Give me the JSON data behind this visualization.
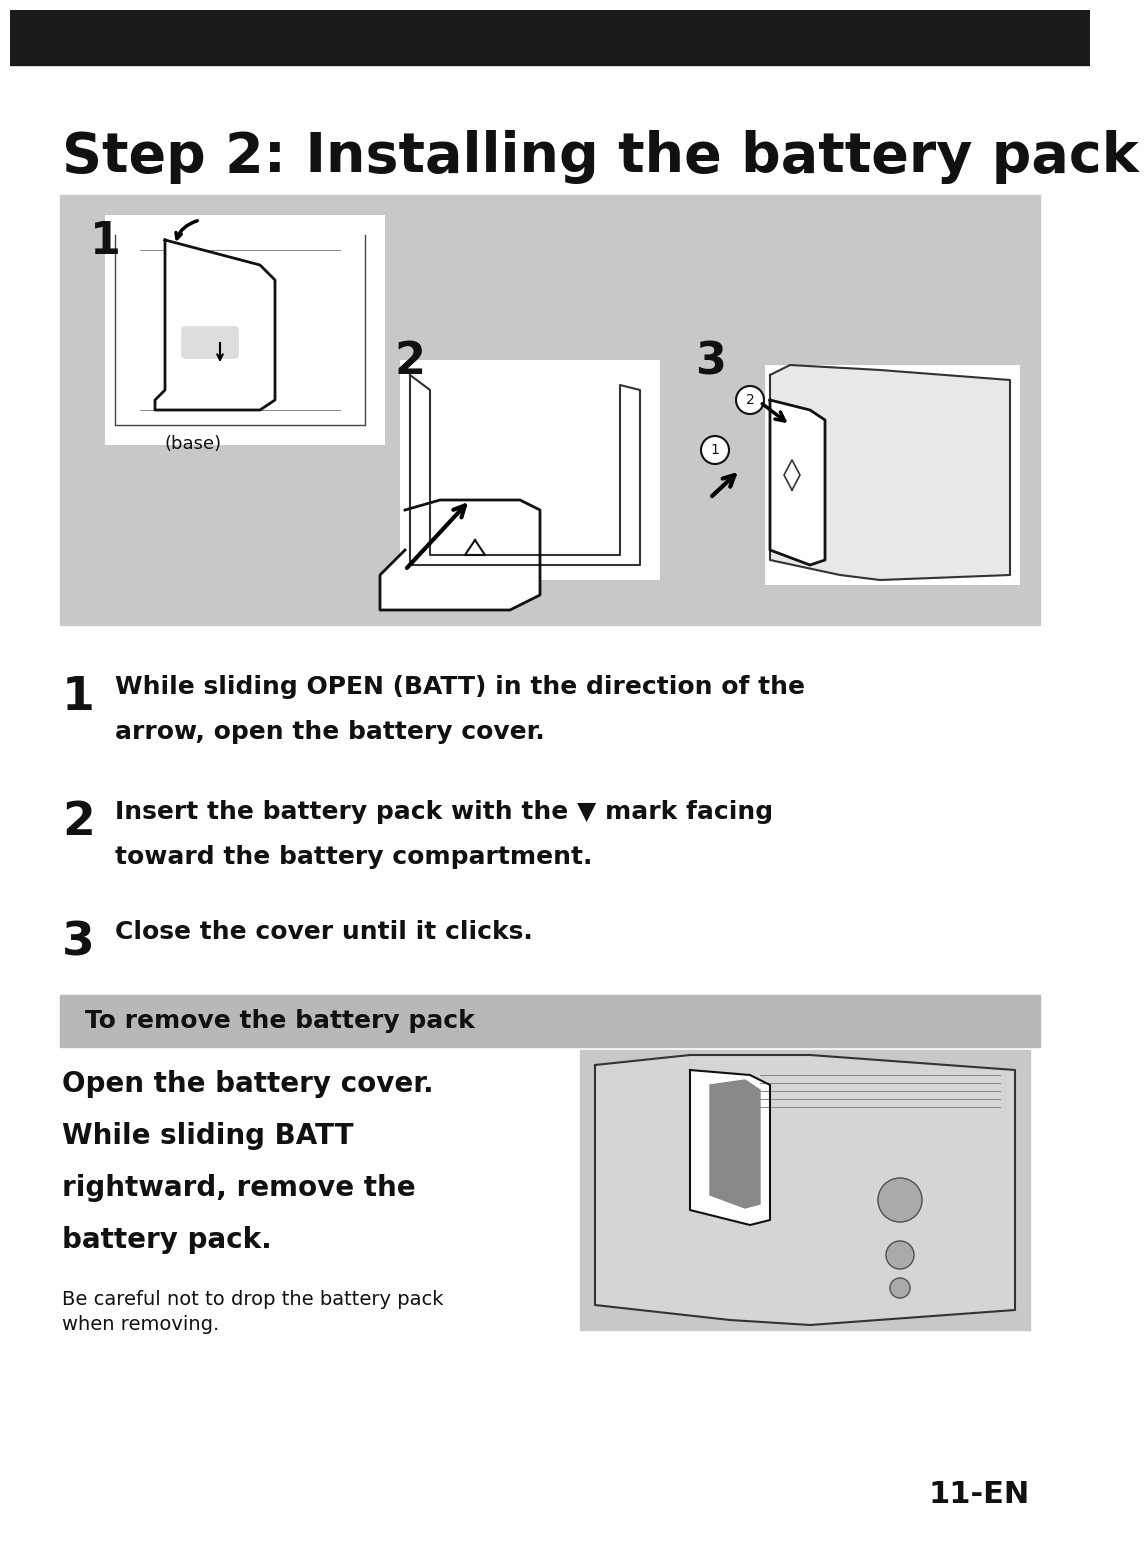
{
  "bg_color": "#ffffff",
  "top_bar_color": "#1a1a1a",
  "title": "Step 2: Installing the battery pack",
  "title_fontsize": 40,
  "diagram_box_color": "#c8c8c8",
  "step1_num": "1",
  "step1_line1": "While sliding OPEN (BATT) in the direction of the",
  "step1_line2": "arrow, open the battery cover.",
  "step2_num": "2",
  "step2_line1": "Insert the battery pack with the ▼ mark facing",
  "step2_line2": "toward the battery compartment.",
  "step3_num": "3",
  "step3_line1": "Close the cover until it clicks.",
  "remove_box_color": "#b8b8b8",
  "remove_title": "To remove the battery pack",
  "remove_bold_line1": "Open the battery cover.",
  "remove_bold_line2": "While sliding BATT",
  "remove_bold_line3": "rightward, remove the",
  "remove_bold_line4": "battery pack.",
  "remove_note_line1": "Be careful not to drop the battery pack",
  "remove_note_line2": "when removing.",
  "page_num": "11-EN",
  "label_base": "(base)",
  "num_label_1": "1",
  "num_label_2": "2",
  "num_label_3": "3"
}
